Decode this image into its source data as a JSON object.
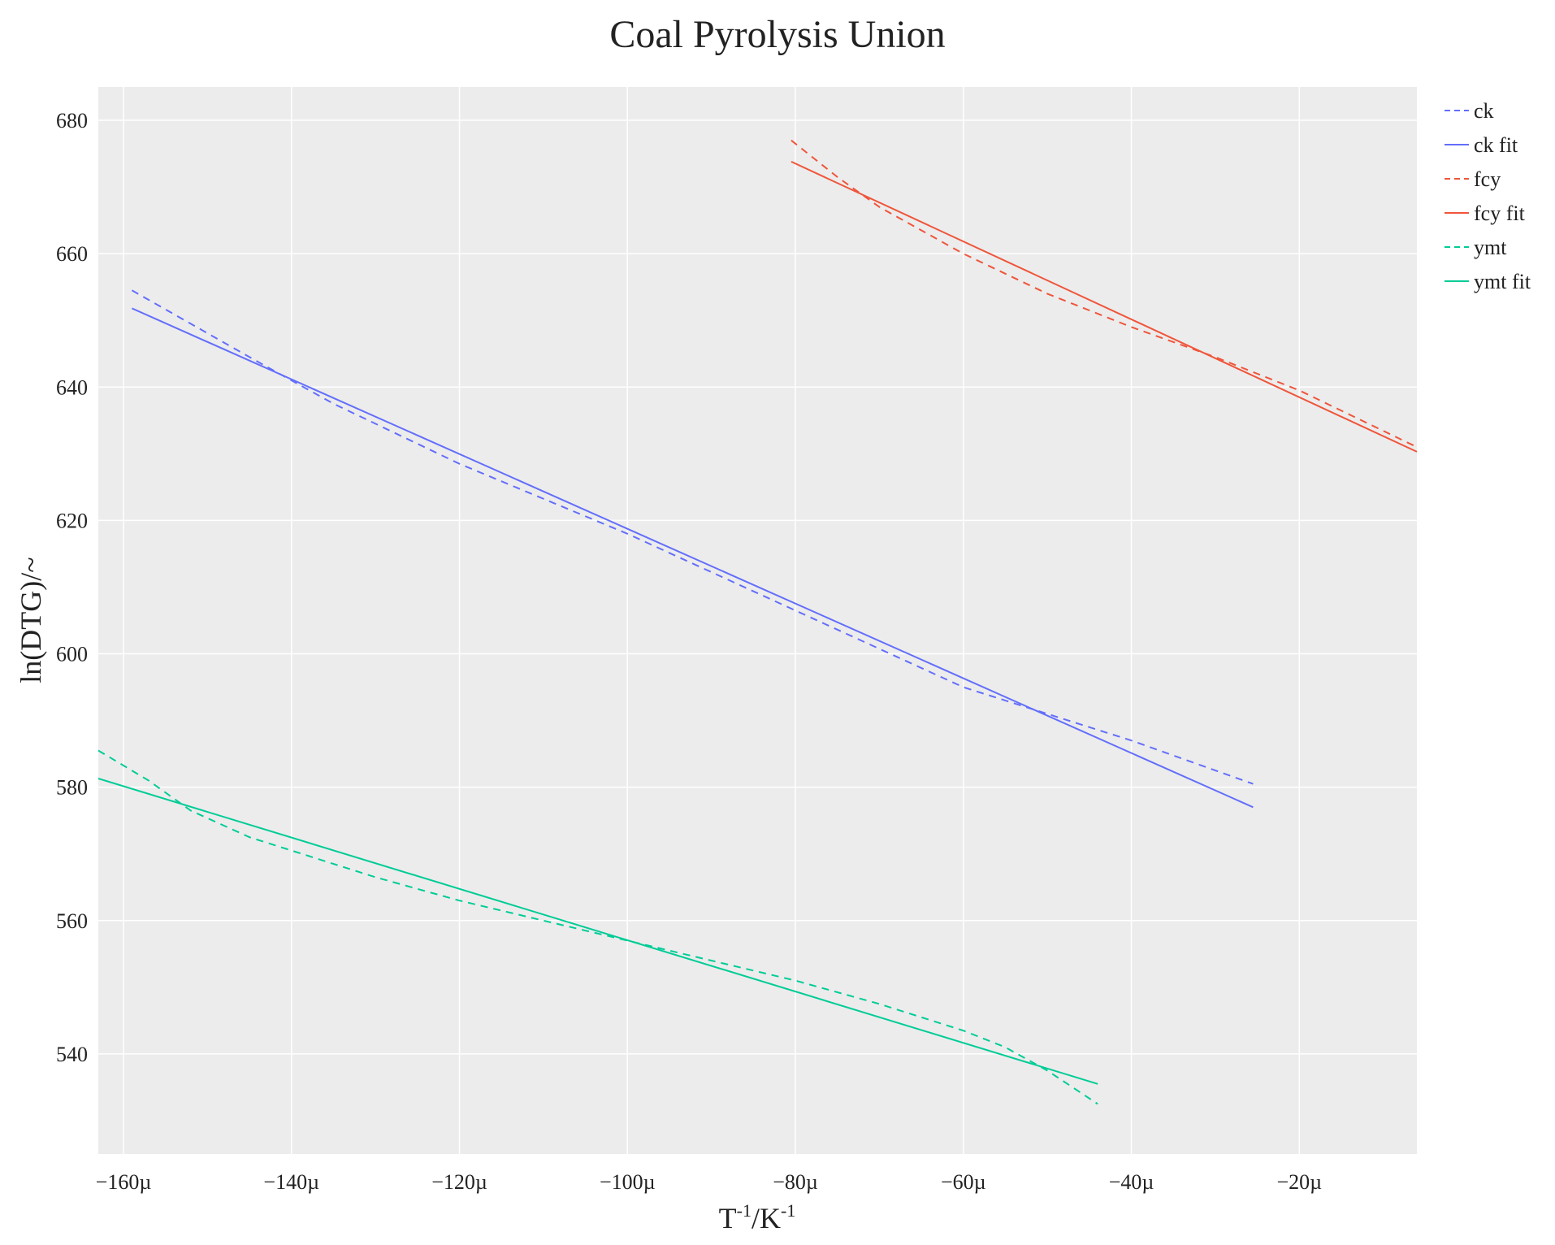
{
  "chart_data": {
    "type": "line",
    "title": "Coal Pyrolysis Union",
    "xlabel": {
      "base": "T",
      "sup1": "-1",
      "mid": "/K",
      "sup2": "-1"
    },
    "ylabel": "ln(DTG)/~",
    "xlim": [
      -163,
      -6
    ],
    "ylim": [
      525,
      685
    ],
    "x_ticks": [
      -160,
      -140,
      -120,
      -100,
      -80,
      -60,
      -40,
      -20
    ],
    "x_tick_labels": [
      "−160µ",
      "−140µ",
      "−120µ",
      "−100µ",
      "−80µ",
      "−60µ",
      "−40µ",
      "−20µ"
    ],
    "y_ticks": [
      540,
      560,
      580,
      600,
      620,
      640,
      660,
      680
    ],
    "y_tick_labels": [
      "540",
      "560",
      "580",
      "600",
      "620",
      "640",
      "660",
      "680"
    ],
    "grid": true,
    "legend_position": "right",
    "series": [
      {
        "name": "ck",
        "style": "dashed",
        "color": "#636efa",
        "x": [
          -159,
          -145,
          -135,
          -120,
          -100,
          -80,
          -60,
          -50,
          -40,
          -25.5
        ],
        "y": [
          654.5,
          644.5,
          637.5,
          628.5,
          618,
          606.5,
          595,
          591,
          587,
          580.5
        ]
      },
      {
        "name": "ck fit",
        "style": "solid",
        "color": "#636efa",
        "x": [
          -159,
          -25.5
        ],
        "y": [
          651.8,
          577
        ]
      },
      {
        "name": "fcy",
        "style": "dashed",
        "color": "#ef553b",
        "x": [
          -80.5,
          -75,
          -70,
          -60,
          -50,
          -40,
          -30,
          -20,
          -6
        ],
        "y": [
          677,
          671.5,
          667,
          660,
          654,
          649,
          644.5,
          639.5,
          631
        ]
      },
      {
        "name": "fcy fit",
        "style": "solid",
        "color": "#ef553b",
        "x": [
          -80.5,
          -6
        ],
        "y": [
          673.8,
          630.3
        ]
      },
      {
        "name": "ymt",
        "style": "dashed",
        "color": "#00cc96",
        "x": [
          -163,
          -157,
          -152,
          -145,
          -140,
          -130,
          -120,
          -110,
          -100,
          -90,
          -80,
          -70,
          -60,
          -55,
          -50,
          -47,
          -44
        ],
        "y": [
          585.5,
          581,
          576.5,
          572.5,
          570.5,
          566.5,
          563,
          560,
          557,
          554,
          551,
          547.5,
          543.5,
          541,
          537.5,
          535,
          532.5
        ]
      },
      {
        "name": "ymt fit",
        "style": "solid",
        "color": "#00cc96",
        "x": [
          -163,
          -44
        ],
        "y": [
          581.3,
          535.5
        ]
      }
    ]
  }
}
